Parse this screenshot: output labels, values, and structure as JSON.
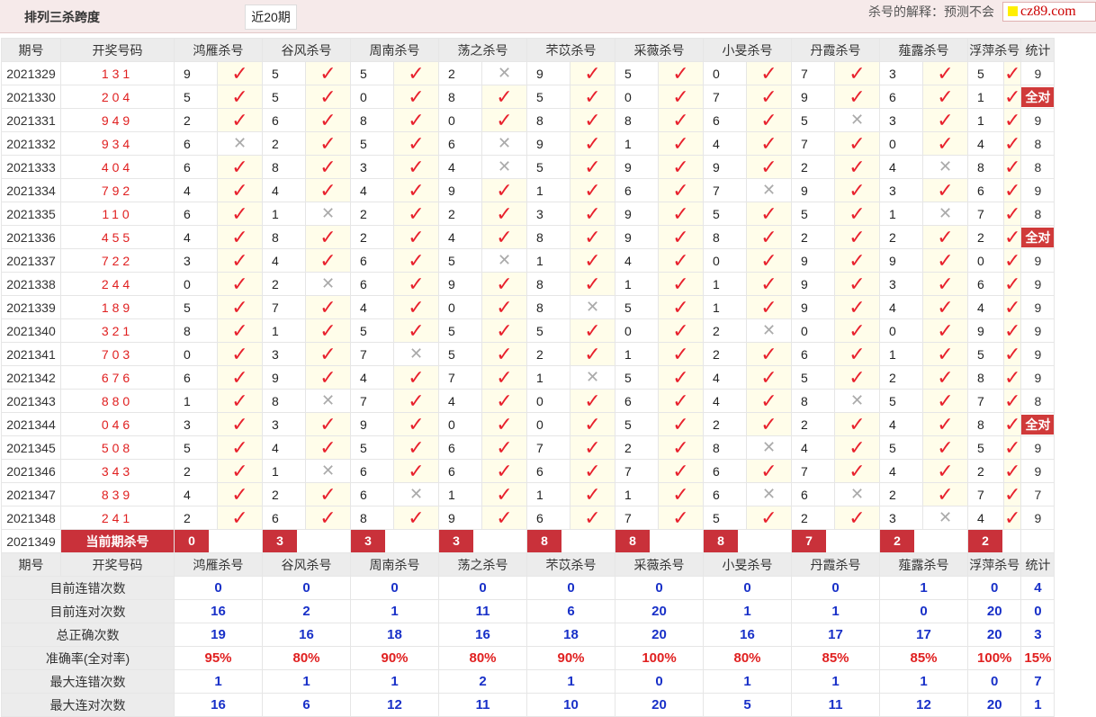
{
  "header": {
    "title": "排列三杀跨度",
    "period_value": "近20期",
    "explain": "杀号的解释：预测不会",
    "logo": "cz89.com"
  },
  "columns": [
    "期号",
    "开奖号码",
    "鸿雁杀号",
    "谷风杀号",
    "周南杀号",
    "荡之杀号",
    "芣苡杀号",
    "采薇杀号",
    "小旻杀号",
    "丹霞杀号",
    "薤露杀号",
    "浮萍杀号",
    "统计"
  ],
  "rows": [
    {
      "period": "2021329",
      "draw": "131",
      "kills": [
        [
          9,
          1
        ],
        [
          5,
          1
        ],
        [
          5,
          1
        ],
        [
          2,
          0
        ],
        [
          9,
          1
        ],
        [
          5,
          1
        ],
        [
          0,
          1
        ],
        [
          7,
          1
        ],
        [
          3,
          1
        ],
        [
          5,
          1
        ]
      ],
      "stat": "9"
    },
    {
      "period": "2021330",
      "draw": "204",
      "kills": [
        [
          5,
          1
        ],
        [
          5,
          1
        ],
        [
          0,
          1
        ],
        [
          8,
          1
        ],
        [
          5,
          1
        ],
        [
          0,
          1
        ],
        [
          7,
          1
        ],
        [
          9,
          1
        ],
        [
          6,
          1
        ],
        [
          1,
          1
        ]
      ],
      "stat": "全对"
    },
    {
      "period": "2021331",
      "draw": "949",
      "kills": [
        [
          2,
          1
        ],
        [
          6,
          1
        ],
        [
          8,
          1
        ],
        [
          0,
          1
        ],
        [
          8,
          1
        ],
        [
          8,
          1
        ],
        [
          6,
          1
        ],
        [
          5,
          0
        ],
        [
          3,
          1
        ],
        [
          1,
          1
        ]
      ],
      "stat": "9"
    },
    {
      "period": "2021332",
      "draw": "934",
      "kills": [
        [
          6,
          0
        ],
        [
          2,
          1
        ],
        [
          5,
          1
        ],
        [
          6,
          0
        ],
        [
          9,
          1
        ],
        [
          1,
          1
        ],
        [
          4,
          1
        ],
        [
          7,
          1
        ],
        [
          0,
          1
        ],
        [
          4,
          1
        ]
      ],
      "stat": "8"
    },
    {
      "period": "2021333",
      "draw": "404",
      "kills": [
        [
          6,
          1
        ],
        [
          8,
          1
        ],
        [
          3,
          1
        ],
        [
          4,
          0
        ],
        [
          5,
          1
        ],
        [
          9,
          1
        ],
        [
          9,
          1
        ],
        [
          2,
          1
        ],
        [
          4,
          0
        ],
        [
          8,
          1
        ]
      ],
      "stat": "8"
    },
    {
      "period": "2021334",
      "draw": "792",
      "kills": [
        [
          4,
          1
        ],
        [
          4,
          1
        ],
        [
          4,
          1
        ],
        [
          9,
          1
        ],
        [
          1,
          1
        ],
        [
          6,
          1
        ],
        [
          7,
          0
        ],
        [
          9,
          1
        ],
        [
          3,
          1
        ],
        [
          6,
          1
        ]
      ],
      "stat": "9"
    },
    {
      "period": "2021335",
      "draw": "110",
      "kills": [
        [
          6,
          1
        ],
        [
          1,
          0
        ],
        [
          2,
          1
        ],
        [
          2,
          1
        ],
        [
          3,
          1
        ],
        [
          9,
          1
        ],
        [
          5,
          1
        ],
        [
          5,
          1
        ],
        [
          1,
          0
        ],
        [
          7,
          1
        ]
      ],
      "stat": "8"
    },
    {
      "period": "2021336",
      "draw": "455",
      "kills": [
        [
          4,
          1
        ],
        [
          8,
          1
        ],
        [
          2,
          1
        ],
        [
          4,
          1
        ],
        [
          8,
          1
        ],
        [
          9,
          1
        ],
        [
          8,
          1
        ],
        [
          2,
          1
        ],
        [
          2,
          1
        ],
        [
          2,
          1
        ]
      ],
      "stat": "全对"
    },
    {
      "period": "2021337",
      "draw": "722",
      "kills": [
        [
          3,
          1
        ],
        [
          4,
          1
        ],
        [
          6,
          1
        ],
        [
          5,
          0
        ],
        [
          1,
          1
        ],
        [
          4,
          1
        ],
        [
          0,
          1
        ],
        [
          9,
          1
        ],
        [
          9,
          1
        ],
        [
          0,
          1
        ]
      ],
      "stat": "9"
    },
    {
      "period": "2021338",
      "draw": "244",
      "kills": [
        [
          0,
          1
        ],
        [
          2,
          0
        ],
        [
          6,
          1
        ],
        [
          9,
          1
        ],
        [
          8,
          1
        ],
        [
          1,
          1
        ],
        [
          1,
          1
        ],
        [
          9,
          1
        ],
        [
          3,
          1
        ],
        [
          6,
          1
        ]
      ],
      "stat": "9"
    },
    {
      "period": "2021339",
      "draw": "189",
      "kills": [
        [
          5,
          1
        ],
        [
          7,
          1
        ],
        [
          4,
          1
        ],
        [
          0,
          1
        ],
        [
          8,
          0
        ],
        [
          5,
          1
        ],
        [
          1,
          1
        ],
        [
          9,
          1
        ],
        [
          4,
          1
        ],
        [
          4,
          1
        ]
      ],
      "stat": "9"
    },
    {
      "period": "2021340",
      "draw": "321",
      "kills": [
        [
          8,
          1
        ],
        [
          1,
          1
        ],
        [
          5,
          1
        ],
        [
          5,
          1
        ],
        [
          5,
          1
        ],
        [
          0,
          1
        ],
        [
          2,
          0
        ],
        [
          0,
          1
        ],
        [
          0,
          1
        ],
        [
          9,
          1
        ]
      ],
      "stat": "9"
    },
    {
      "period": "2021341",
      "draw": "703",
      "kills": [
        [
          0,
          1
        ],
        [
          3,
          1
        ],
        [
          7,
          0
        ],
        [
          5,
          1
        ],
        [
          2,
          1
        ],
        [
          1,
          1
        ],
        [
          2,
          1
        ],
        [
          6,
          1
        ],
        [
          1,
          1
        ],
        [
          5,
          1
        ]
      ],
      "stat": "9"
    },
    {
      "period": "2021342",
      "draw": "676",
      "kills": [
        [
          6,
          1
        ],
        [
          9,
          1
        ],
        [
          4,
          1
        ],
        [
          7,
          1
        ],
        [
          1,
          0
        ],
        [
          5,
          1
        ],
        [
          4,
          1
        ],
        [
          5,
          1
        ],
        [
          2,
          1
        ],
        [
          8,
          1
        ]
      ],
      "stat": "9"
    },
    {
      "period": "2021343",
      "draw": "880",
      "kills": [
        [
          1,
          1
        ],
        [
          8,
          0
        ],
        [
          7,
          1
        ],
        [
          4,
          1
        ],
        [
          0,
          1
        ],
        [
          6,
          1
        ],
        [
          4,
          1
        ],
        [
          8,
          0
        ],
        [
          5,
          1
        ],
        [
          7,
          1
        ]
      ],
      "stat": "8"
    },
    {
      "period": "2021344",
      "draw": "046",
      "kills": [
        [
          3,
          1
        ],
        [
          3,
          1
        ],
        [
          9,
          1
        ],
        [
          0,
          1
        ],
        [
          0,
          1
        ],
        [
          5,
          1
        ],
        [
          2,
          1
        ],
        [
          2,
          1
        ],
        [
          4,
          1
        ],
        [
          8,
          1
        ]
      ],
      "stat": "全对"
    },
    {
      "period": "2021345",
      "draw": "508",
      "kills": [
        [
          5,
          1
        ],
        [
          4,
          1
        ],
        [
          5,
          1
        ],
        [
          6,
          1
        ],
        [
          7,
          1
        ],
        [
          2,
          1
        ],
        [
          8,
          0
        ],
        [
          4,
          1
        ],
        [
          5,
          1
        ],
        [
          5,
          1
        ]
      ],
      "stat": "9"
    },
    {
      "period": "2021346",
      "draw": "343",
      "kills": [
        [
          2,
          1
        ],
        [
          1,
          0
        ],
        [
          6,
          1
        ],
        [
          6,
          1
        ],
        [
          6,
          1
        ],
        [
          7,
          1
        ],
        [
          6,
          1
        ],
        [
          7,
          1
        ],
        [
          4,
          1
        ],
        [
          2,
          1
        ]
      ],
      "stat": "9"
    },
    {
      "period": "2021347",
      "draw": "839",
      "kills": [
        [
          4,
          1
        ],
        [
          2,
          1
        ],
        [
          6,
          0
        ],
        [
          1,
          1
        ],
        [
          1,
          1
        ],
        [
          1,
          1
        ],
        [
          6,
          0
        ],
        [
          6,
          0
        ],
        [
          2,
          1
        ],
        [
          7,
          1
        ]
      ],
      "stat": "7"
    },
    {
      "period": "2021348",
      "draw": "241",
      "kills": [
        [
          2,
          1
        ],
        [
          6,
          1
        ],
        [
          8,
          1
        ],
        [
          9,
          1
        ],
        [
          6,
          1
        ],
        [
          7,
          1
        ],
        [
          5,
          1
        ],
        [
          2,
          1
        ],
        [
          3,
          0
        ],
        [
          4,
          1
        ]
      ],
      "stat": "9"
    }
  ],
  "current": {
    "period": "2021349",
    "label": "当前期杀号",
    "values": [
      "0",
      "3",
      "3",
      "3",
      "8",
      "8",
      "8",
      "7",
      "2",
      "2"
    ]
  },
  "summary": [
    {
      "label": "目前连错次数",
      "values": [
        "0",
        "0",
        "0",
        "0",
        "0",
        "0",
        "0",
        "0",
        "1",
        "0",
        "4"
      ],
      "red": false
    },
    {
      "label": "目前连对次数",
      "values": [
        "16",
        "2",
        "1",
        "11",
        "6",
        "20",
        "1",
        "1",
        "0",
        "20",
        "0"
      ],
      "red": false
    },
    {
      "label": "总正确次数",
      "values": [
        "19",
        "16",
        "18",
        "16",
        "18",
        "20",
        "16",
        "17",
        "17",
        "20",
        "3"
      ],
      "red": false
    },
    {
      "label": "准确率(全对率)",
      "values": [
        "95%",
        "80%",
        "90%",
        "80%",
        "90%",
        "100%",
        "80%",
        "85%",
        "85%",
        "100%",
        "15%"
      ],
      "red": true
    },
    {
      "label": "最大连错次数",
      "values": [
        "1",
        "1",
        "1",
        "2",
        "1",
        "0",
        "1",
        "1",
        "1",
        "0",
        "7"
      ],
      "red": false
    },
    {
      "label": "最大连对次数",
      "values": [
        "16",
        "6",
        "12",
        "11",
        "10",
        "20",
        "5",
        "11",
        "12",
        "20",
        "1"
      ],
      "red": false
    }
  ]
}
